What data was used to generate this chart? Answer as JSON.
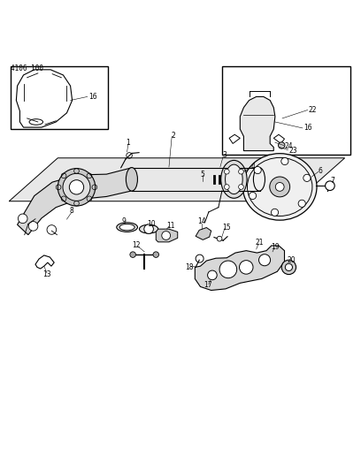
{
  "title": "4106 100",
  "bg_color": "#ffffff",
  "line_color": "#000000",
  "text_color": "#000000",
  "figure_width": 4.08,
  "figure_height": 5.33,
  "dpi": 100
}
